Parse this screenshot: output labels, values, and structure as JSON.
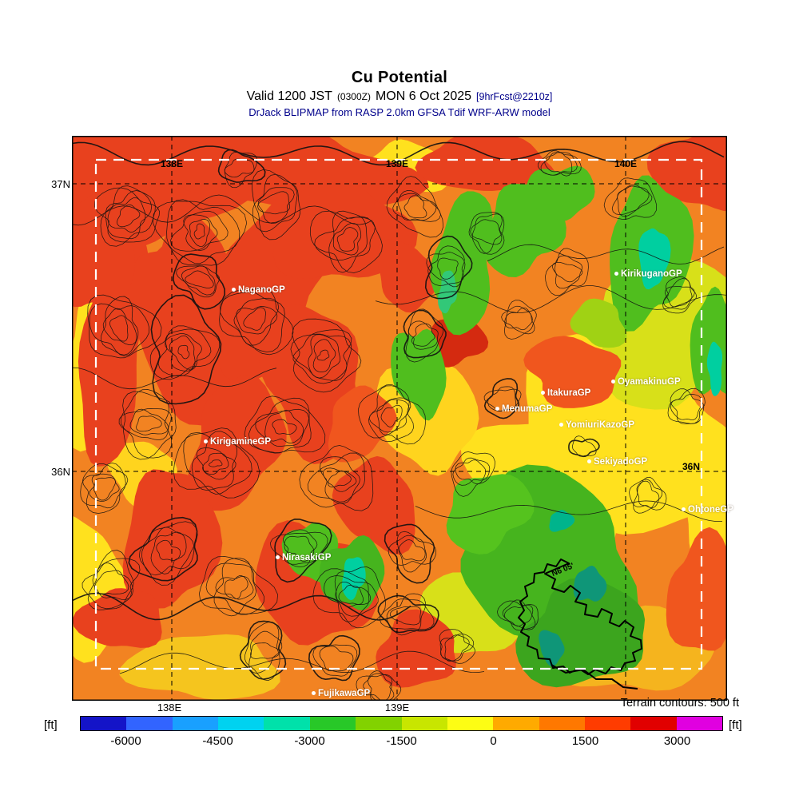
{
  "header": {
    "title": "Cu Potential",
    "valid_prefix": "Valid 1200 JST",
    "valid_time_utc": "(0300Z)",
    "valid_date": "MON 6 Oct 2025",
    "fcst_note": "[9hrFcst@2210z]",
    "model_line": "DrJack BLIPMAP from RASP 2.0km GFSA Tdif WRF-ARW model"
  },
  "map": {
    "grid": {
      "lat37_left": "37N",
      "lat36_left": "36N",
      "lat36_right": "36N",
      "lon138_top": "138E",
      "lon139_top": "139E",
      "lon140_top": "140E",
      "lon138_bottom": "138E",
      "lon139_bottom": "139E"
    },
    "annotation": "N6 05'",
    "sites": [
      {
        "name": "NaganoGP"
      },
      {
        "name": "KirigamineGP"
      },
      {
        "name": "NirasakiGP"
      },
      {
        "name": "FujikawaGP"
      },
      {
        "name": "KirikuganoGP"
      },
      {
        "name": "OyamakinuGP"
      },
      {
        "name": "ItakuraGP"
      },
      {
        "name": "MenumaGP"
      },
      {
        "name": "YomiuriKazoGP"
      },
      {
        "name": "SekiyadoGP"
      },
      {
        "name": "OhtoneGP"
      }
    ]
  },
  "footer": {
    "terrain_note": "Terrain contours: 500 ft",
    "unit_left": "[ft]",
    "unit_right": "[ft]",
    "colorbar": {
      "colors": [
        "#1414c8",
        "#3264ff",
        "#19a0ff",
        "#00d2f0",
        "#00e1aa",
        "#28c828",
        "#82d200",
        "#c8e600",
        "#fdfd14",
        "#ffaa00",
        "#ff7800",
        "#ff3c00",
        "#e10000",
        "#e000e0"
      ],
      "ticks": [
        "-6000",
        "-4500",
        "-3000",
        "-1500",
        "0",
        "1500",
        "3000"
      ]
    }
  }
}
